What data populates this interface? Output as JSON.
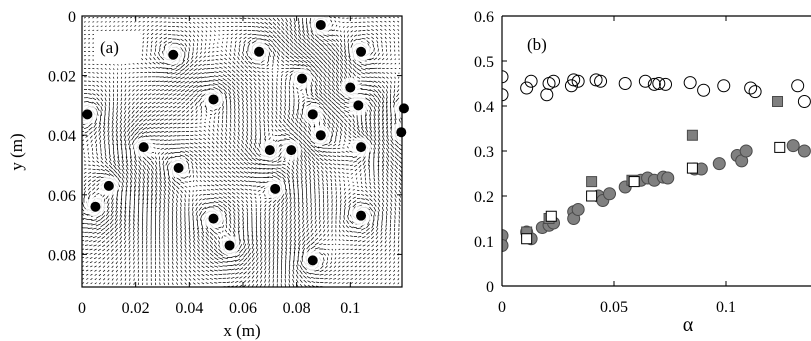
{
  "chart_data": [
    {
      "type": "scatter",
      "panel_label": "(a)",
      "title": "",
      "xlabel": "x (m)",
      "ylabel": "y (m)",
      "xlim": [
        0,
        0.12
      ],
      "ylim": [
        0.09,
        0
      ],
      "y_axis_inverted": true,
      "x_ticks": [
        "0",
        "0.02",
        "0.04",
        "0.06",
        "0.08",
        "0.1"
      ],
      "x_tick_values": [
        0,
        0.02,
        0.04,
        0.06,
        0.08,
        0.1
      ],
      "y_ticks": [
        "0",
        "0.02",
        "0.04",
        "0.06",
        "0.08"
      ],
      "y_tick_values": [
        0,
        0.02,
        0.04,
        0.06,
        0.08
      ],
      "background": "dense vector (quiver) field",
      "series": [
        {
          "marker": "filled-circle",
          "color": "#000000",
          "points": [
            [
              0.066,
              0.012
            ],
            [
              0.089,
              0.003
            ],
            [
              0.034,
              0.013
            ],
            [
              0.104,
              0.012
            ],
            [
              0.082,
              0.021
            ],
            [
              0.1,
              0.024
            ],
            [
              0.103,
              0.03
            ],
            [
              0.049,
              0.028
            ],
            [
              0.002,
              0.033
            ],
            [
              0.12,
              0.031
            ],
            [
              0.086,
              0.033
            ],
            [
              0.119,
              0.039
            ],
            [
              0.089,
              0.04
            ],
            [
              0.023,
              0.044
            ],
            [
              0.07,
              0.045
            ],
            [
              0.078,
              0.045
            ],
            [
              0.104,
              0.044
            ],
            [
              0.036,
              0.051
            ],
            [
              0.01,
              0.057
            ],
            [
              0.072,
              0.058
            ],
            [
              0.005,
              0.064
            ],
            [
              0.049,
              0.068
            ],
            [
              0.104,
              0.067
            ],
            [
              0.055,
              0.077
            ],
            [
              0.086,
              0.082
            ]
          ]
        }
      ]
    },
    {
      "type": "scatter",
      "panel_label": "(b)",
      "title": "",
      "xlabel": "α",
      "ylabel": "",
      "xlim": [
        0,
        0.135
      ],
      "ylim": [
        0,
        0.6
      ],
      "x_ticks": [
        "0",
        "0.05",
        "0.1"
      ],
      "x_tick_values": [
        0,
        0.05,
        0.1
      ],
      "y_ticks": [
        "0",
        "0.1",
        "0.2",
        "0.3",
        "0.4",
        "0.5",
        "0.6"
      ],
      "y_tick_values": [
        0,
        0.1,
        0.2,
        0.3,
        0.4,
        0.5,
        0.6
      ],
      "series": [
        {
          "marker": "open-circle",
          "color": "#000000",
          "fill": "none",
          "points": [
            [
              0.0,
              0.465
            ],
            [
              0.0,
              0.425
            ],
            [
              0.011,
              0.44
            ],
            [
              0.013,
              0.455
            ],
            [
              0.02,
              0.425
            ],
            [
              0.021,
              0.45
            ],
            [
              0.023,
              0.455
            ],
            [
              0.031,
              0.445
            ],
            [
              0.032,
              0.458
            ],
            [
              0.034,
              0.455
            ],
            [
              0.042,
              0.458
            ],
            [
              0.044,
              0.455
            ],
            [
              0.055,
              0.45
            ],
            [
              0.064,
              0.455
            ],
            [
              0.068,
              0.448
            ],
            [
              0.07,
              0.45
            ],
            [
              0.073,
              0.448
            ],
            [
              0.084,
              0.452
            ],
            [
              0.09,
              0.435
            ],
            [
              0.099,
              0.445
            ],
            [
              0.111,
              0.44
            ],
            [
              0.113,
              0.432
            ],
            [
              0.132,
              0.445
            ],
            [
              0.135,
              0.41
            ]
          ]
        },
        {
          "marker": "filled-circle",
          "color": "#808080",
          "points": [
            [
              0.0,
              0.112
            ],
            [
              0.0,
              0.09
            ],
            [
              0.011,
              0.12
            ],
            [
              0.013,
              0.105
            ],
            [
              0.018,
              0.13
            ],
            [
              0.021,
              0.135
            ],
            [
              0.023,
              0.14
            ],
            [
              0.032,
              0.165
            ],
            [
              0.032,
              0.15
            ],
            [
              0.034,
              0.17
            ],
            [
              0.043,
              0.2
            ],
            [
              0.045,
              0.19
            ],
            [
              0.048,
              0.205
            ],
            [
              0.055,
              0.22
            ],
            [
              0.062,
              0.235
            ],
            [
              0.065,
              0.24
            ],
            [
              0.068,
              0.235
            ],
            [
              0.072,
              0.242
            ],
            [
              0.074,
              0.24
            ],
            [
              0.086,
              0.26
            ],
            [
              0.089,
              0.26
            ],
            [
              0.097,
              0.272
            ],
            [
              0.105,
              0.29
            ],
            [
              0.107,
              0.278
            ],
            [
              0.109,
              0.3
            ],
            [
              0.13,
              0.312
            ],
            [
              0.135,
              0.3
            ]
          ]
        },
        {
          "marker": "filled-square",
          "color": "#808080",
          "points": [
            [
              0.011,
              0.12
            ],
            [
              0.021,
              0.15
            ],
            [
              0.04,
              0.232
            ],
            [
              0.058,
              0.235
            ],
            [
              0.085,
              0.335
            ],
            [
              0.123,
              0.41
            ]
          ]
        },
        {
          "marker": "open-square",
          "color": "#000000",
          "fill": "#ffffff",
          "points": [
            [
              0.011,
              0.105
            ],
            [
              0.022,
              0.155
            ],
            [
              0.04,
              0.2
            ],
            [
              0.059,
              0.232
            ],
            [
              0.085,
              0.262
            ],
            [
              0.124,
              0.308
            ]
          ]
        }
      ]
    }
  ]
}
